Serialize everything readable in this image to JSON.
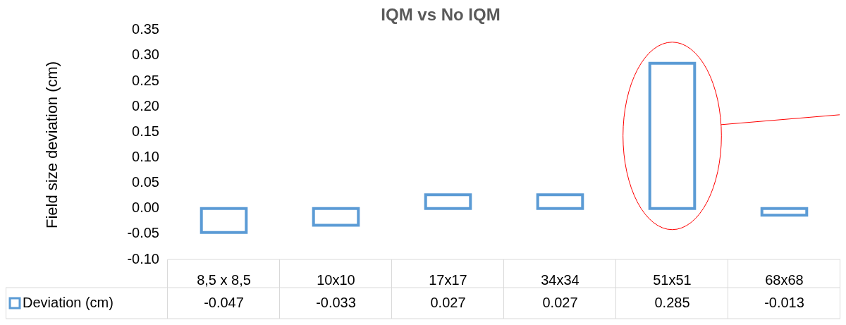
{
  "chart_data": {
    "type": "bar",
    "title": "IQM vs No IQM",
    "ylabel": "Field size deviation (cm)",
    "categories": [
      "8,5 x 8,5",
      "10x10",
      "17x17",
      "34x34",
      "51x51",
      "68x68"
    ],
    "series": [
      {
        "name": "Deviation (cm)",
        "color": "#5b9bd5",
        "values": [
          -0.047,
          -0.033,
          0.027,
          0.027,
          0.285,
          -0.013
        ]
      }
    ],
    "ylim": [
      -0.1,
      0.35
    ],
    "yticks": [
      {
        "value": -0.1,
        "label": "-0.10"
      },
      -0.05,
      {
        "value": 0,
        "label": "0.00"
      },
      0.05,
      {
        "value": 0.1,
        "label": "0.10"
      },
      0.15,
      {
        "value": 0.2,
        "label": "0.20"
      },
      0.25,
      {
        "value": 0.3,
        "label": "0.30"
      },
      0.35
    ],
    "grid": false,
    "legend": "bottom",
    "data_labels": true
  }
}
